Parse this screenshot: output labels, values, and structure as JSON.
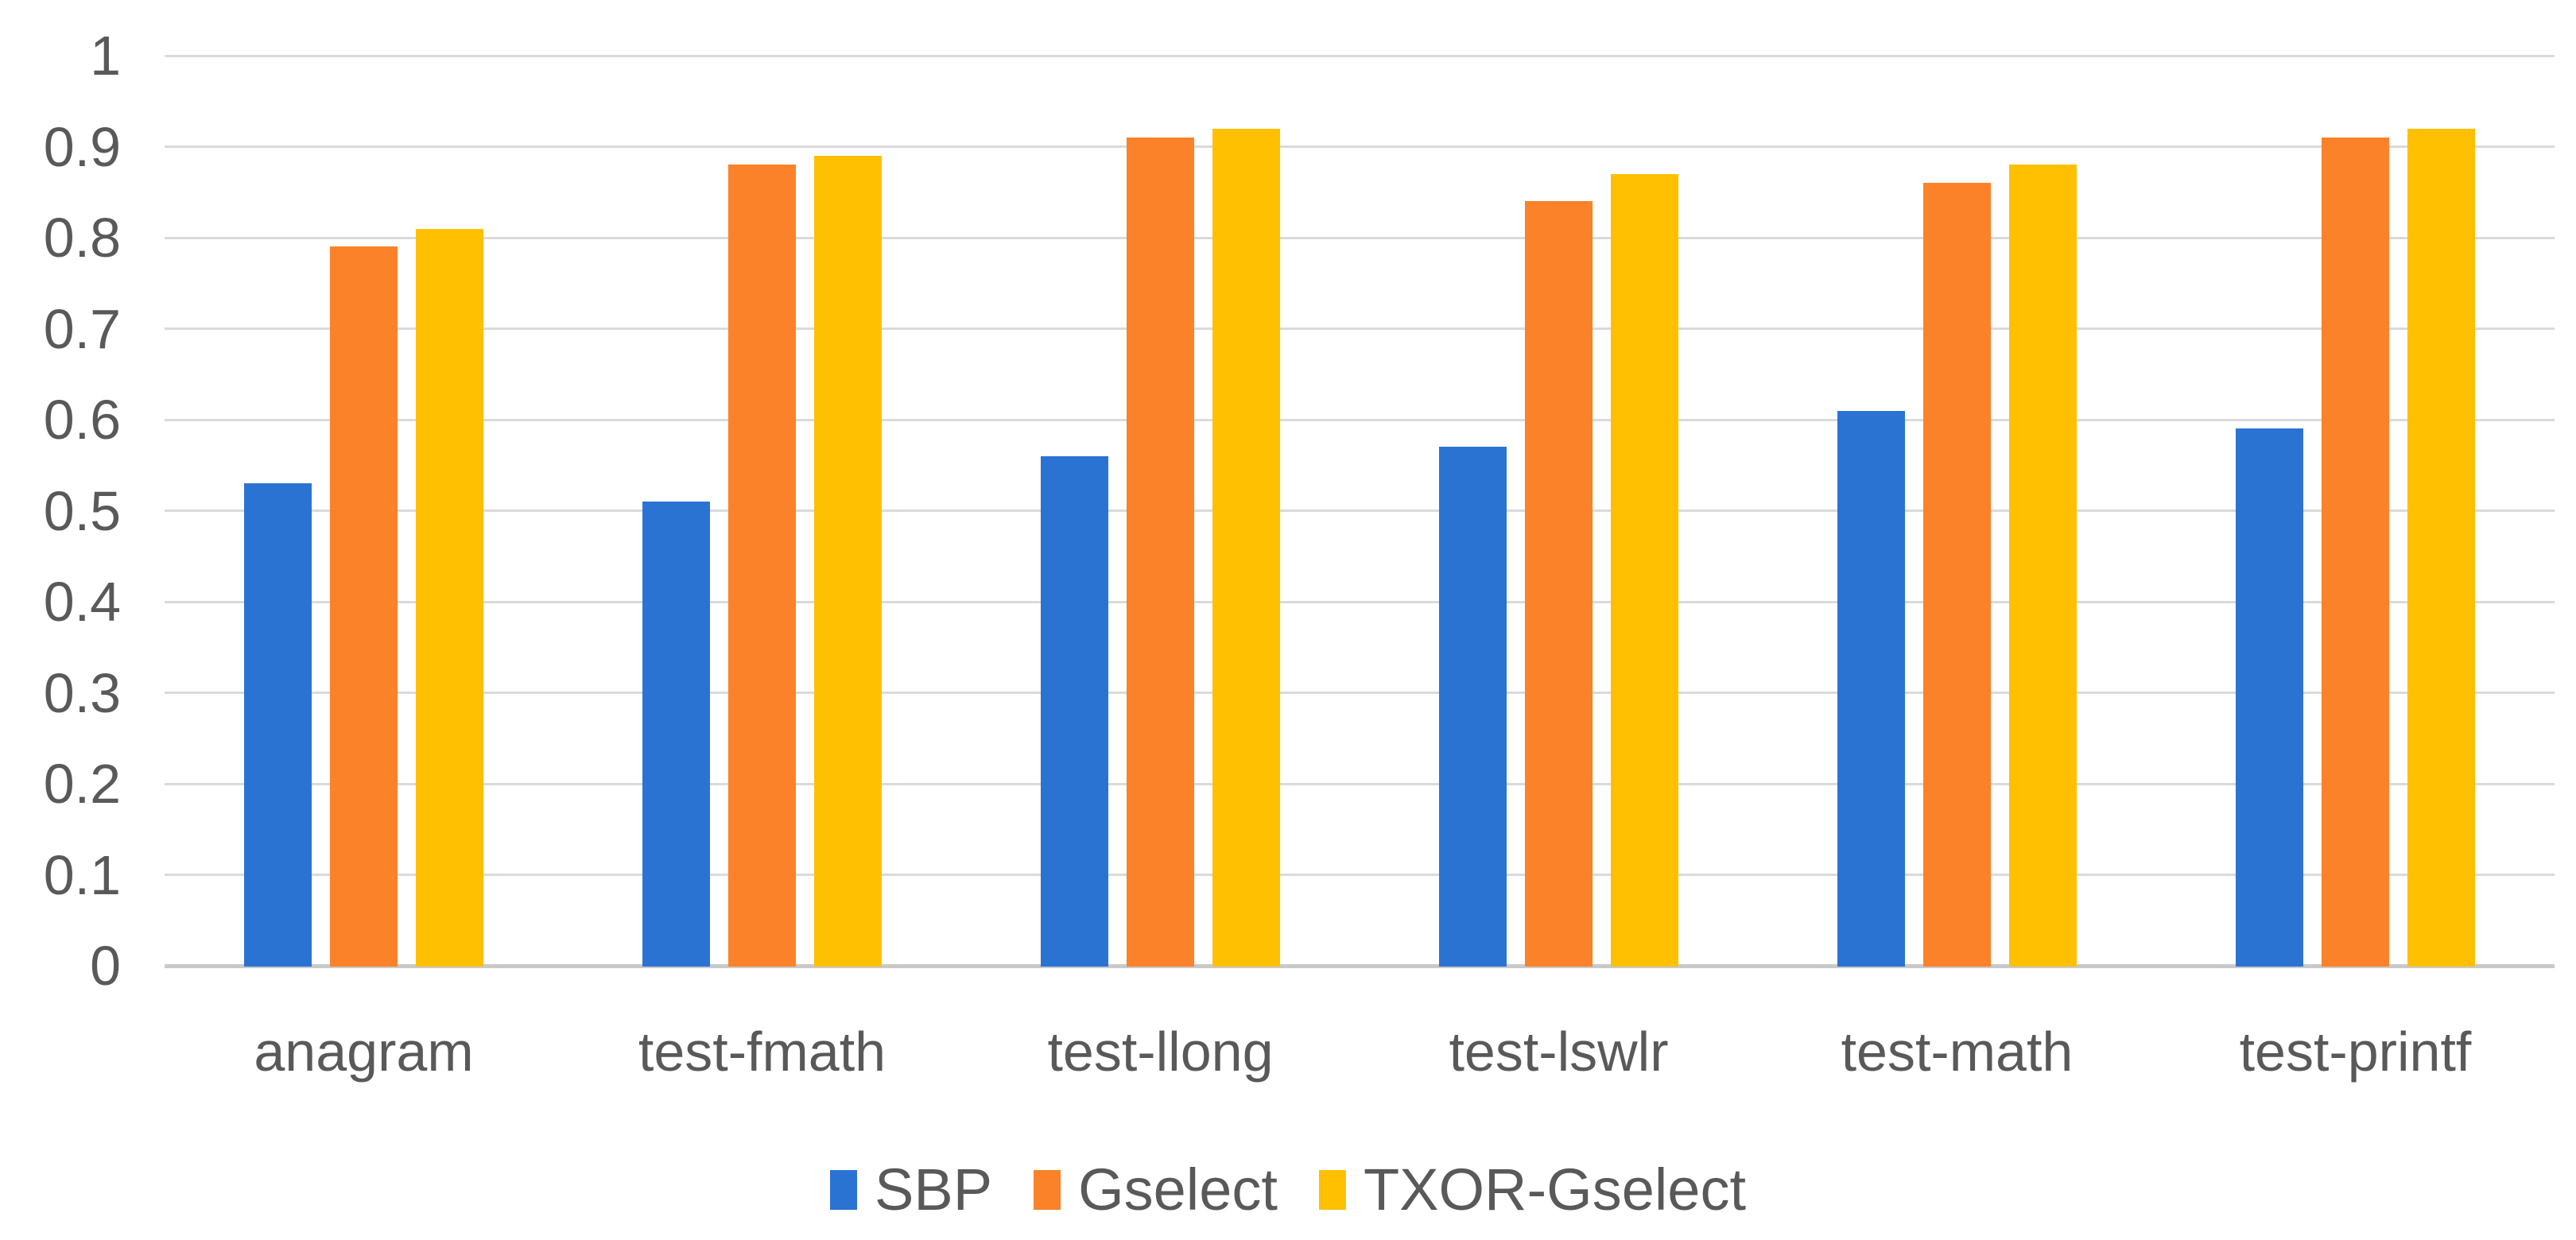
{
  "chart_data": {
    "type": "bar",
    "title": "",
    "categories": [
      "anagram",
      "test-fmath",
      "test-llong",
      "test-lswlr",
      "test-math",
      "test-printf"
    ],
    "series": [
      {
        "name": "SBP",
        "color": "#2B73D3",
        "values": [
          0.53,
          0.51,
          0.56,
          0.57,
          0.61,
          0.59
        ]
      },
      {
        "name": "Gselect",
        "color": "#FB8228",
        "values": [
          0.79,
          0.88,
          0.91,
          0.84,
          0.86,
          0.91
        ]
      },
      {
        "name": "TXOR-Gselect",
        "color": "#FFC002",
        "values": [
          0.81,
          0.89,
          0.92,
          0.87,
          0.88,
          0.92
        ]
      }
    ],
    "xlabel": "",
    "ylabel": "",
    "ylim": [
      0,
      1
    ],
    "ytick_step": 0.1,
    "ytick_labels": [
      "0",
      "0.1",
      "0.2",
      "0.3",
      "0.4",
      "0.5",
      "0.6",
      "0.7",
      "0.8",
      "0.9",
      "1"
    ],
    "grid": true,
    "gridline_color": "#DADADA",
    "axis_line_color": "#C9C9C9",
    "tick_label_color": "#595959",
    "legend_position": "bottom"
  }
}
